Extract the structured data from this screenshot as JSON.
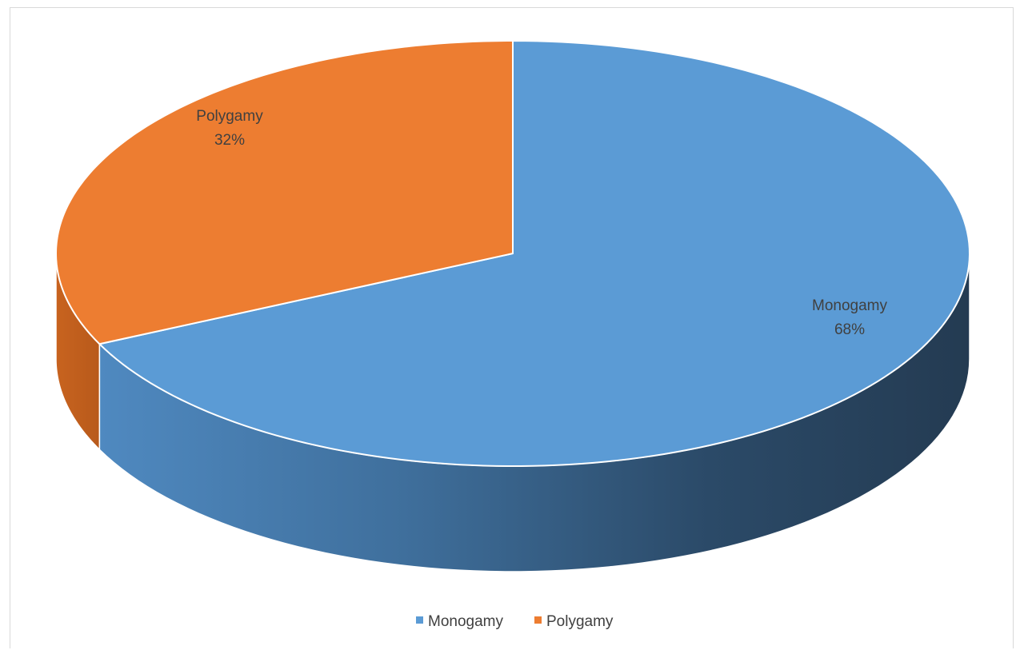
{
  "chart_data": {
    "type": "pie",
    "style": "3d",
    "title": "",
    "categories": [
      "Monogamy",
      "Polygamy"
    ],
    "values": [
      68,
      32
    ],
    "units": "%",
    "colors": [
      "#5b9bd5",
      "#ed7d31"
    ],
    "data_labels": [
      {
        "name": "Monogamy",
        "value": "68%"
      },
      {
        "name": "Polygamy",
        "value": "32%"
      }
    ],
    "legend": {
      "placement": "bottom",
      "entries": [
        "Monogamy",
        "Polygamy"
      ]
    }
  }
}
